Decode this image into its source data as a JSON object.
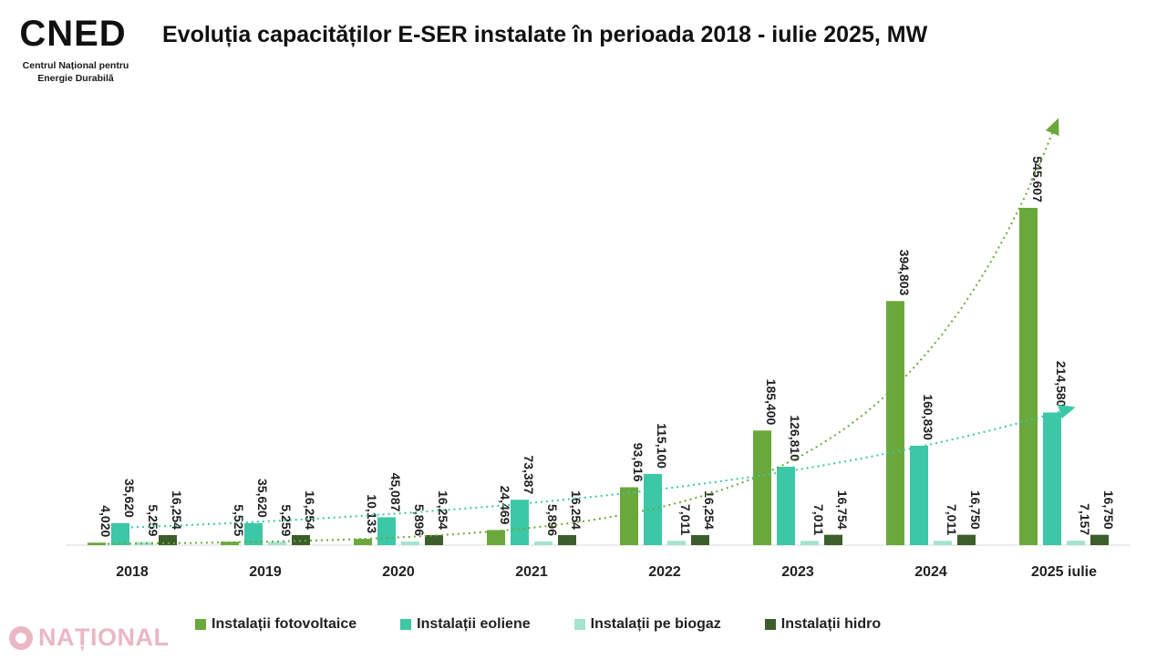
{
  "header": {
    "logo_text": "CNED",
    "logo_sub_line1": "Centrul Național pentru",
    "logo_sub_line2": "Energie Durabilă",
    "title": "Evoluția capacităților E-SER instalate în perioada 2018 - iulie 2025, MW"
  },
  "watermark": {
    "text": "NAȚIONAL"
  },
  "colors": {
    "fotovoltaice": "#6aa83b",
    "eoliene": "#3cc7a6",
    "biogaz": "#a4e3cf",
    "hidro": "#3b5e2b",
    "logo_green": "#1fbf4a",
    "logo_dark": "#111111"
  },
  "chart_data": {
    "type": "bar",
    "title": "Evoluția capacităților E-SER instalate în perioada 2018 - iulie 2025, MW",
    "xlabel": "",
    "ylabel": "",
    "categories": [
      "2018",
      "2019",
      "2020",
      "2021",
      "2022",
      "2023",
      "2024",
      "2025 iulie"
    ],
    "series": [
      {
        "name": "Instalații fotovoltaice",
        "values": [
          4.02,
          5.525,
          10.133,
          24.469,
          93.616,
          185.4,
          394.803,
          545.607
        ],
        "labels": [
          "4,020",
          "5,525",
          "10,133",
          "24,469",
          "93,616",
          "185,400",
          "394,803",
          "545,607"
        ]
      },
      {
        "name": "Instalații eoliene",
        "values": [
          35.62,
          35.62,
          45.087,
          73.387,
          115.1,
          126.81,
          160.83,
          214.58
        ],
        "labels": [
          "35,620",
          "35,620",
          "45,087",
          "73,387",
          "115,100",
          "126,810",
          "160,830",
          "214,580"
        ]
      },
      {
        "name": "Instalații pe biogaz",
        "values": [
          5.259,
          5.259,
          5.896,
          5.896,
          7.011,
          7.011,
          7.011,
          7.157
        ],
        "labels": [
          "5,259",
          "5,259",
          "5,896",
          "5,896",
          "7,011",
          "7,011",
          "7,011",
          "7,157"
        ]
      },
      {
        "name": "Instalații hidro",
        "values": [
          16.254,
          16.254,
          16.254,
          16.254,
          16.254,
          16.754,
          16.75,
          16.75
        ],
        "labels": [
          "16,254",
          "16,254",
          "16,254",
          "16,254",
          "16,254",
          "16,754",
          "16,750",
          "16,750"
        ]
      }
    ],
    "trendlines": [
      "Instalații fotovoltaice",
      "Instalații eoliene"
    ],
    "ylim": [
      0,
      650
    ],
    "grid": false,
    "legend": "bottom"
  }
}
